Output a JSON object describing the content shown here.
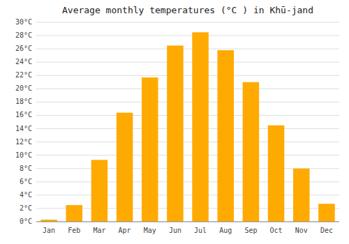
{
  "chart_data": {
    "type": "bar",
    "title": "Average monthly temperatures (°C ) in Khū-jand",
    "categories": [
      "Jan",
      "Feb",
      "Mar",
      "Apr",
      "May",
      "Jun",
      "Jul",
      "Aug",
      "Sep",
      "Oct",
      "Nov",
      "Dec"
    ],
    "values": [
      0.3,
      2.5,
      9.3,
      16.4,
      21.7,
      26.5,
      28.5,
      25.8,
      21.0,
      14.5,
      8.0,
      2.7
    ],
    "color": "#FFAA00",
    "ylim": [
      0,
      30
    ],
    "yticks": [
      {
        "value": 0,
        "label": "0°C"
      },
      {
        "value": 2,
        "label": "2°C"
      },
      {
        "value": 4,
        "label": "4°C"
      },
      {
        "value": 6,
        "label": "6°C"
      },
      {
        "value": 8,
        "label": "8°C"
      },
      {
        "value": 10,
        "label": "10°C"
      },
      {
        "value": 12,
        "label": "12°C"
      },
      {
        "value": 14,
        "label": "14°C"
      },
      {
        "value": 16,
        "label": "16°C"
      },
      {
        "value": 18,
        "label": "18°C"
      },
      {
        "value": 20,
        "label": "20°C"
      },
      {
        "value": 22,
        "label": "22°C"
      },
      {
        "value": 24,
        "label": "24°C"
      },
      {
        "value": 26,
        "label": "26°C"
      },
      {
        "value": 28,
        "label": "28°C"
      },
      {
        "value": 30,
        "label": "30°C"
      }
    ],
    "grid": true
  }
}
